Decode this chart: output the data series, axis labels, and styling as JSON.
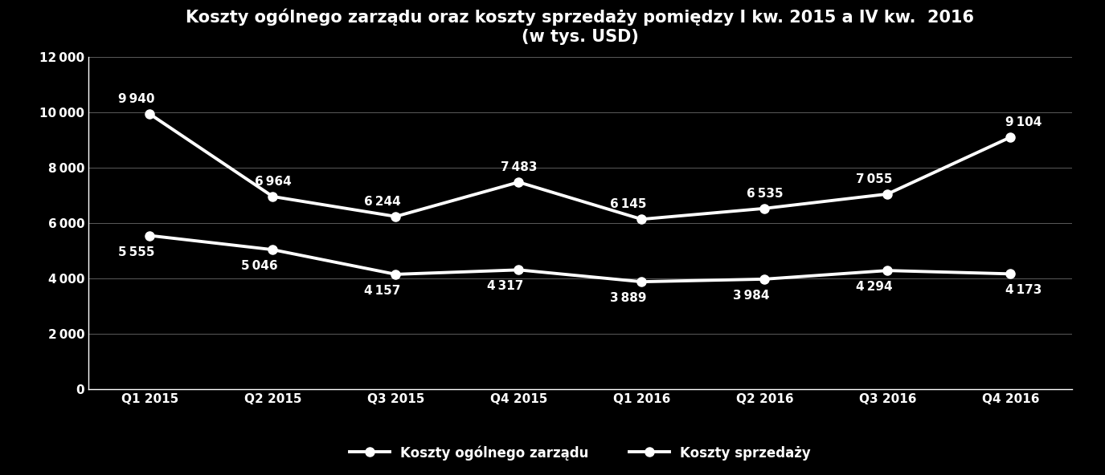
{
  "title_line1": "Koszty ogólnego zarządu oraz koszty sprzedaży pomiędzy I kw. 2015 a IV kw.  2016",
  "title_line2": "(w tys. USD)",
  "categories": [
    "Q1 2015",
    "Q2 2015",
    "Q3 2015",
    "Q4 2015",
    "Q1 2016",
    "Q2 2016",
    "Q3 2016",
    "Q4 2016"
  ],
  "series1_label": "Koszty ogólnego zarządu",
  "series1_values": [
    9940,
    6964,
    6244,
    7483,
    6145,
    6535,
    7055,
    9104
  ],
  "series2_label": "Koszty sprzedaży",
  "series2_values": [
    5555,
    5046,
    4157,
    4317,
    3889,
    3984,
    4294,
    4173
  ],
  "background_color": "#000000",
  "line_color": "#ffffff",
  "text_color": "#ffffff",
  "grid_color": "#ffffff",
  "ylim": [
    0,
    12000
  ],
  "yticks": [
    0,
    2000,
    4000,
    6000,
    8000,
    10000,
    12000
  ],
  "line_width": 2.8,
  "marker_size": 8,
  "title_fontsize": 15,
  "label_fontsize": 12,
  "tick_fontsize": 11,
  "annotation_fontsize": 11
}
